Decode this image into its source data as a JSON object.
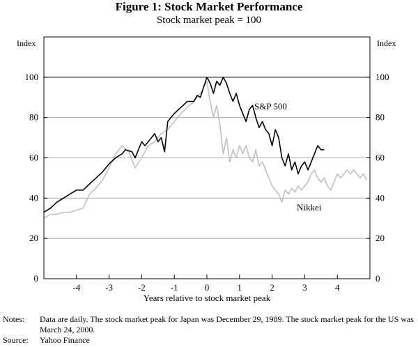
{
  "title": "Figure 1:  Stock Market Performance",
  "subtitle": "Stock market peak = 100",
  "notes_label": "Notes:",
  "notes_text": "Data are daily. The stock market peak for Japan was December 29, 1989. The stock market peak for the US was March 24, 2000.",
  "source_label": "Source:",
  "source_text": "Yahoo Finance",
  "chart_data": {
    "type": "line",
    "title": "Figure 1:  Stock Market Performance",
    "subtitle": "Stock market peak = 100",
    "xlabel": "Years relative to stock market peak",
    "ylabel_left": "Index",
    "ylabel_right": "Index",
    "xlim": [
      -5,
      5
    ],
    "ylim": [
      0,
      120
    ],
    "xticks": [
      -4,
      -3,
      -2,
      -1,
      0,
      1,
      2,
      3,
      4
    ],
    "yticks": [
      0,
      20,
      40,
      60,
      80,
      100
    ],
    "reference_line": 100,
    "series": [
      {
        "name": "S&P 500",
        "label": "S&P 500",
        "color": "#000000",
        "x": [
          -5.0,
          -4.8,
          -4.6,
          -4.4,
          -4.2,
          -4.0,
          -3.8,
          -3.6,
          -3.4,
          -3.2,
          -3.0,
          -2.8,
          -2.6,
          -2.5,
          -2.3,
          -2.2,
          -2.0,
          -1.9,
          -1.7,
          -1.6,
          -1.5,
          -1.4,
          -1.3,
          -1.2,
          -1.0,
          -0.8,
          -0.6,
          -0.4,
          -0.3,
          -0.2,
          -0.1,
          0.0,
          0.1,
          0.2,
          0.3,
          0.4,
          0.5,
          0.6,
          0.7,
          0.8,
          0.9,
          1.0,
          1.1,
          1.2,
          1.3,
          1.4,
          1.5,
          1.6,
          1.7,
          1.8,
          1.9,
          2.0,
          2.1,
          2.2,
          2.3,
          2.4,
          2.5,
          2.6,
          2.7,
          2.8,
          2.9,
          3.0,
          3.1,
          3.2,
          3.3,
          3.4,
          3.5,
          3.6
        ],
        "values": [
          33,
          35,
          38,
          40,
          42,
          44,
          44,
          47,
          50,
          53,
          57,
          60,
          62,
          64,
          63,
          60,
          68,
          66,
          70,
          72,
          68,
          70,
          63,
          78,
          82,
          85,
          88,
          88,
          91,
          90,
          95,
          100,
          97,
          92,
          98,
          96,
          100,
          97,
          92,
          88,
          92,
          86,
          82,
          78,
          84,
          86,
          80,
          75,
          78,
          74,
          72,
          66,
          74,
          70,
          60,
          56,
          62,
          54,
          58,
          52,
          56,
          58,
          54,
          58,
          62,
          66,
          64,
          64
        ]
      },
      {
        "name": "Nikkei",
        "label": "Nikkei",
        "color": "#c0c0c0",
        "x": [
          -5.0,
          -4.8,
          -4.6,
          -4.4,
          -4.2,
          -4.0,
          -3.8,
          -3.6,
          -3.4,
          -3.2,
          -3.0,
          -2.8,
          -2.6,
          -2.4,
          -2.2,
          -2.0,
          -1.8,
          -1.6,
          -1.4,
          -1.2,
          -1.0,
          -0.8,
          -0.6,
          -0.4,
          -0.2,
          0.0,
          0.1,
          0.2,
          0.3,
          0.4,
          0.5,
          0.6,
          0.7,
          0.8,
          0.9,
          1.0,
          1.1,
          1.2,
          1.3,
          1.4,
          1.5,
          1.6,
          1.7,
          1.8,
          1.9,
          2.0,
          2.1,
          2.2,
          2.3,
          2.4,
          2.5,
          2.6,
          2.7,
          2.8,
          2.9,
          3.0,
          3.1,
          3.2,
          3.3,
          3.4,
          3.5,
          3.6,
          3.7,
          3.8,
          3.9,
          4.0,
          4.1,
          4.2,
          4.3,
          4.4,
          4.5,
          4.6,
          4.7,
          4.8,
          4.9
        ],
        "values": [
          30,
          32,
          32,
          33,
          33,
          34,
          35,
          42,
          45,
          49,
          55,
          62,
          66,
          63,
          55,
          60,
          66,
          68,
          72,
          74,
          78,
          82,
          85,
          88,
          92,
          98,
          88,
          80,
          86,
          76,
          62,
          70,
          58,
          64,
          60,
          66,
          62,
          66,
          60,
          58,
          64,
          56,
          58,
          54,
          50,
          46,
          44,
          42,
          38,
          44,
          42,
          45,
          43,
          46,
          44,
          46,
          48,
          52,
          54,
          50,
          48,
          50,
          46,
          44,
          48,
          52,
          50,
          52,
          54,
          52,
          54,
          52,
          50,
          52,
          49
        ]
      }
    ]
  }
}
